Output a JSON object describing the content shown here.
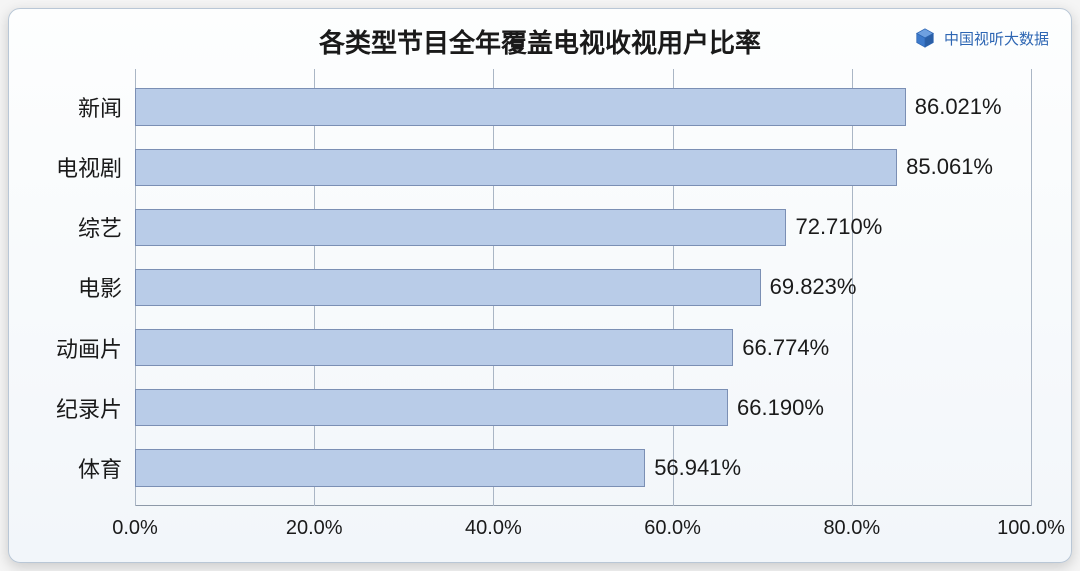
{
  "chart": {
    "type": "bar-horizontal",
    "title": "各类型节目全年覆盖电视收视用户比率",
    "title_fontsize": 26,
    "title_color": "#1a1a1a",
    "background_gradient_top": "#fdfefe",
    "background_gradient_bottom": "#f2f6fa",
    "card_border_color": "#b9c7d6",
    "card_border_radius": 12,
    "bar_fill_color": "#b9cce8",
    "bar_border_color": "#7b8fb4",
    "grid_color": "#aab6c5",
    "axis_color": "#8d99a8",
    "label_color": "#1a1a1a",
    "category_fontsize": 22,
    "value_fontsize": 22,
    "tick_fontsize": 20,
    "xlim_min": 0,
    "xlim_max": 100,
    "xtick_step": 20,
    "xtick_labels": [
      "0.0%",
      "20.0%",
      "40.0%",
      "60.0%",
      "80.0%",
      "100.0%"
    ],
    "categories": [
      "新闻",
      "电视剧",
      "综艺",
      "电影",
      "动画片",
      "纪录片",
      "体育"
    ],
    "values": [
      86.021,
      85.061,
      72.71,
      69.823,
      66.774,
      66.19,
      56.941
    ],
    "value_labels": [
      "86.021%",
      "85.061%",
      "72.710%",
      "69.823%",
      "66.774%",
      "66.190%",
      "56.941%"
    ],
    "bar_height_ratio": 0.62
  },
  "watermark": {
    "text": "中国视听大数据",
    "color": "#2d66b3",
    "icon": "cube-icon",
    "fontsize": 15
  }
}
